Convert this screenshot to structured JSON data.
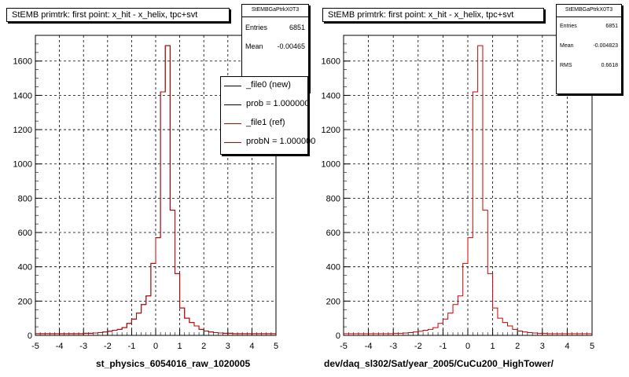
{
  "chart_data": [
    {
      "type": "histogram",
      "title": "StEMB primtrk: first point: x_hit - x_helix, tpc+svt",
      "xlabel": "st_physics_6054016_raw_1020005",
      "xlim": [
        -5,
        5
      ],
      "ylim": [
        0,
        1750
      ],
      "x_ticks": [
        -5,
        -4,
        -3,
        -2,
        -1,
        0,
        1,
        2,
        3,
        4,
        5
      ],
      "y_ticks": [
        0,
        200,
        400,
        600,
        800,
        1000,
        1200,
        1400,
        1600
      ],
      "grid": true,
      "bin_width": 0.2,
      "bin_edges_start": -5,
      "series": [
        {
          "name": "_file0 (new)",
          "color": "#000000",
          "values": [
            10,
            10,
            10,
            10,
            10,
            10,
            10,
            10,
            10,
            10,
            12,
            12,
            14,
            16,
            20,
            24,
            30,
            35,
            45,
            70,
            95,
            130,
            180,
            230,
            420,
            570,
            1420,
            1690,
            730,
            360,
            160,
            100,
            75,
            55,
            35,
            25,
            20,
            16,
            14,
            12,
            12,
            10,
            10,
            10,
            10,
            10,
            10,
            10,
            10,
            10
          ]
        },
        {
          "name": "_file1 (ref)",
          "color": "#cc0000",
          "values": [
            10,
            10,
            10,
            10,
            10,
            10,
            10,
            10,
            10,
            10,
            12,
            12,
            14,
            16,
            20,
            24,
            30,
            35,
            45,
            70,
            95,
            130,
            180,
            230,
            420,
            570,
            1420,
            1690,
            730,
            360,
            160,
            100,
            75,
            55,
            35,
            25,
            20,
            16,
            14,
            12,
            12,
            10,
            10,
            10,
            10,
            10,
            10,
            10,
            10,
            10
          ]
        }
      ],
      "stats_box": {
        "header": "StEMBGaPtrkX0T3",
        "entries_label": "Entries",
        "entries": "6851",
        "mean_label": "Mean",
        "mean": "-0.00465"
      },
      "legend": [
        {
          "label": "_file0 (new)",
          "color": "#000000"
        },
        {
          "label": "prob = 1.000000",
          "color": "#000000"
        },
        {
          "label": "_file1 (ref)",
          "color": "#cc0000"
        },
        {
          "label": "probN = 1.000000",
          "color": "#cc0000"
        }
      ]
    },
    {
      "type": "histogram",
      "title": "StEMB primtrk: first point: x_hit - x_helix, tpc+svt",
      "xlabel": "dev/daq_sl302/Sat/year_2005/CuCu200_HighTower/",
      "xlim": [
        -5,
        5
      ],
      "ylim": [
        0,
        1750
      ],
      "x_ticks": [
        -5,
        -4,
        -3,
        -2,
        -1,
        0,
        1,
        2,
        3,
        4,
        5
      ],
      "y_ticks": [
        0,
        200,
        400,
        600,
        800,
        1000,
        1200,
        1400,
        1600
      ],
      "grid": true,
      "bin_width": 0.2,
      "bin_edges_start": -5,
      "series": [
        {
          "name": "",
          "color": "#cc0000",
          "values": [
            10,
            10,
            10,
            10,
            10,
            10,
            10,
            10,
            10,
            10,
            12,
            12,
            14,
            16,
            20,
            24,
            30,
            35,
            45,
            70,
            95,
            130,
            180,
            230,
            420,
            570,
            1420,
            1690,
            730,
            360,
            160,
            100,
            75,
            55,
            35,
            25,
            20,
            16,
            14,
            12,
            12,
            10,
            10,
            10,
            10,
            10,
            10,
            10,
            10,
            10
          ]
        }
      ],
      "stats_box": {
        "header": "StEMBGaPtrkX0T3",
        "entries_label": "Entries",
        "entries": "6851",
        "mean_label": "Mean",
        "mean": "-0.004823",
        "rms_label": "RMS",
        "rms": "0.6618"
      }
    }
  ]
}
